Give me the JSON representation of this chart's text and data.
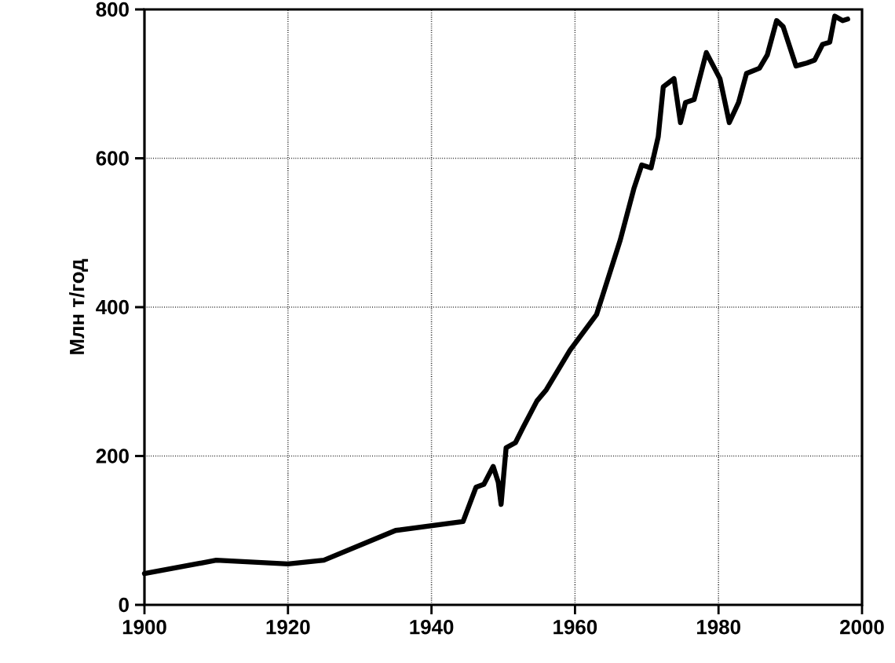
{
  "chart_data": {
    "type": "line",
    "ylabel": "Млн т/год",
    "color": "#000000",
    "x": [
      1900,
      1910,
      1920,
      1925,
      1935,
      1944.4,
      1946.2,
      1947.3,
      1948.6,
      1949.3,
      1949.7,
      1950.4,
      1951.7,
      1952.8,
      1954.7,
      1956,
      1959.3,
      1963,
      1966.3,
      1968.2,
      1969.3,
      1970.6,
      1971.6,
      1972.3,
      1973.8,
      1974.7,
      1975.4,
      1976.6,
      1978.3,
      1980.2,
      1981.5,
      1982.8,
      1983.9,
      1985.7,
      1986.8,
      1988.1,
      1989,
      1990.8,
      1992.3,
      1993.4,
      1994.5,
      1995.5,
      1996.2,
      1997.3,
      1998
    ],
    "values": [
      42,
      60,
      55,
      60,
      100,
      112,
      158,
      162,
      186,
      165,
      135,
      211,
      218,
      239,
      274,
      289,
      342,
      390,
      490,
      559,
      591,
      587,
      629,
      696,
      707,
      648,
      675,
      679,
      742,
      707,
      648,
      675,
      714,
      721,
      739,
      785,
      777,
      724,
      728,
      732,
      753,
      756,
      791,
      785,
      787
    ],
    "xlim": [
      1900,
      2000
    ],
    "ylim": [
      0,
      800
    ],
    "xticks": [
      1900,
      1920,
      1940,
      1960,
      1980,
      2000
    ],
    "yticks": [
      0,
      200,
      400,
      600,
      800
    ],
    "grid": true,
    "line_style": "solid",
    "marker": "none"
  }
}
